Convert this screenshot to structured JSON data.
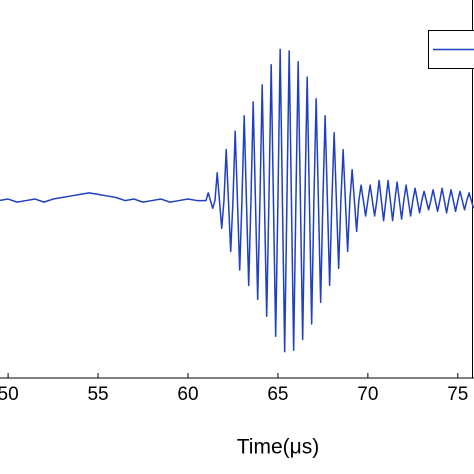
{
  "chart_data": {
    "type": "line",
    "xlabel": "Time(μs)",
    "x": [
      49.5,
      50,
      50.5,
      51,
      51.5,
      52,
      52.5,
      53,
      53.5,
      54,
      54.5,
      55,
      55.5,
      56,
      56.5,
      57,
      57.5,
      58,
      58.5,
      59,
      59.5,
      60,
      60.5,
      61,
      61.125,
      61.25,
      61.375,
      61.5,
      61.625,
      61.75,
      61.875,
      62,
      62.125,
      62.25,
      62.375,
      62.5,
      62.625,
      62.75,
      62.875,
      63,
      63.125,
      63.25,
      63.375,
      63.5,
      63.625,
      63.75,
      63.875,
      64,
      64.125,
      64.25,
      64.375,
      64.5,
      64.625,
      64.75,
      64.875,
      65,
      65.125,
      65.25,
      65.375,
      65.5,
      65.625,
      65.75,
      65.875,
      66,
      66.125,
      66.25,
      66.375,
      66.5,
      66.625,
      66.75,
      66.875,
      67,
      67.125,
      67.25,
      67.375,
      67.5,
      67.625,
      67.75,
      67.875,
      68,
      68.125,
      68.25,
      68.375,
      68.5,
      68.625,
      68.75,
      68.875,
      69,
      69.125,
      69.25,
      69.375,
      69.5,
      69.625,
      69.75,
      69.875,
      70,
      70.125,
      70.25,
      70.375,
      70.5,
      70.625,
      70.75,
      70.875,
      71,
      71.125,
      71.25,
      71.375,
      71.5,
      71.625,
      71.75,
      71.875,
      72,
      72.125,
      72.25,
      72.375,
      72.5,
      72.625,
      72.75,
      72.875,
      73,
      73.125,
      73.25,
      73.375,
      73.5,
      73.625,
      73.75,
      73.875,
      74,
      74.125,
      74.25,
      74.375,
      74.5,
      74.625,
      74.75,
      74.875,
      75,
      75.125,
      75.25,
      75.375,
      75.5,
      75.625,
      75.75,
      75.875
    ],
    "series": [
      {
        "color": "#2040c0",
        "values": [
          0.0,
          0.01,
          -0.01,
          0.0,
          0.01,
          -0.01,
          0.01,
          0.02,
          0.03,
          0.04,
          0.05,
          0.04,
          0.03,
          0.02,
          0.0,
          0.01,
          -0.01,
          0.0,
          0.01,
          -0.01,
          0.0,
          0.01,
          0.0,
          0,
          0.05,
          0,
          -0.05,
          0,
          0.18,
          0,
          -0.18,
          0,
          0.33,
          0,
          -0.33,
          0,
          0.45,
          0,
          -0.45,
          0,
          0.55,
          0,
          -0.55,
          0,
          0.64,
          0,
          -0.64,
          0,
          0.75,
          0,
          -0.75,
          0,
          0.88,
          0,
          -0.88,
          0,
          0.98,
          0,
          -0.98,
          0,
          0.97,
          0,
          -0.97,
          0,
          0.9,
          0,
          -0.9,
          0,
          0.8,
          0,
          -0.8,
          0,
          0.66,
          0,
          -0.66,
          0,
          0.55,
          0,
          -0.55,
          0,
          0.44,
          0,
          -0.44,
          0,
          0.33,
          0,
          -0.33,
          0,
          0.2,
          0,
          -0.2,
          0,
          0.1,
          0,
          -0.1,
          0,
          0.1,
          0,
          -0.1,
          0,
          0.13,
          0,
          -0.13,
          0,
          0.13,
          0,
          -0.13,
          0,
          0.12,
          0,
          -0.12,
          0,
          0.1,
          0,
          -0.1,
          0,
          0.08,
          0,
          -0.08,
          0,
          0.06,
          0,
          -0.06,
          0,
          0.07,
          0,
          -0.07,
          0,
          0.08,
          0,
          -0.08,
          0,
          0.07,
          0,
          -0.07,
          0,
          0.06,
          0,
          -0.06,
          0,
          0.05,
          0,
          -0.05
        ]
      }
    ],
    "xlim": [
      49.55,
      75.9
    ],
    "xticks": [
      50,
      55,
      60,
      65,
      70,
      75
    ],
    "ylim": [
      -1.15,
      1.3
    ]
  }
}
